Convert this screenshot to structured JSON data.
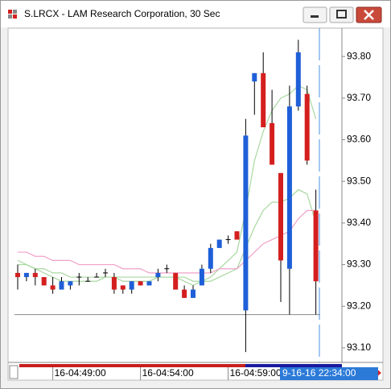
{
  "window_title": "S.LRCX - LAM Research Corporation, 30 Sec",
  "chart_data": {
    "type": "candlestick",
    "categories": [
      null,
      null,
      null,
      null,
      "16-04:49:00",
      null,
      null,
      null,
      null,
      null,
      null,
      null,
      null,
      null,
      "16-04:54:00",
      null,
      null,
      null,
      null,
      null,
      null,
      null,
      null,
      null,
      "16-04:59:00",
      null,
      null,
      null,
      null,
      null,
      null,
      null,
      null,
      null,
      null
    ],
    "cursor_label": "9-16-16 22:34:00",
    "open": [
      93.28,
      93.27,
      93.28,
      93.27,
      93.25,
      93.24,
      93.25,
      93.27,
      93.26,
      93.27,
      93.28,
      93.27,
      93.25,
      93.24,
      93.26,
      93.25,
      93.27,
      93.29,
      93.28,
      93.24,
      93.22,
      93.25,
      93.29,
      93.34,
      93.36,
      93.38,
      93.19,
      93.74,
      93.76,
      93.64,
      93.52,
      93.29,
      93.68,
      93.71,
      93.43
    ],
    "high": [
      93.3,
      93.28,
      93.29,
      93.27,
      93.27,
      93.27,
      93.26,
      93.28,
      93.27,
      93.28,
      93.29,
      93.28,
      93.25,
      93.26,
      93.26,
      93.26,
      93.29,
      93.3,
      93.28,
      93.25,
      93.25,
      93.3,
      93.35,
      93.36,
      93.37,
      93.38,
      93.65,
      93.76,
      93.81,
      93.72,
      93.52,
      93.73,
      93.84,
      93.73,
      93.48
    ],
    "low": [
      93.24,
      93.26,
      93.25,
      93.25,
      93.23,
      93.24,
      93.24,
      93.25,
      93.26,
      93.27,
      93.27,
      93.23,
      93.23,
      93.23,
      93.25,
      93.25,
      93.26,
      93.28,
      93.24,
      93.22,
      93.22,
      93.25,
      93.28,
      93.34,
      93.35,
      93.36,
      93.09,
      93.66,
      93.63,
      93.54,
      93.21,
      93.18,
      93.67,
      93.54,
      93.18
    ],
    "close": [
      93.27,
      93.28,
      93.27,
      93.25,
      93.24,
      93.26,
      93.26,
      93.27,
      93.26,
      93.27,
      93.28,
      93.24,
      93.24,
      93.26,
      93.25,
      93.26,
      93.28,
      93.29,
      93.24,
      93.22,
      93.24,
      93.29,
      93.34,
      93.36,
      93.36,
      93.36,
      93.61,
      93.76,
      93.63,
      93.54,
      93.31,
      93.68,
      93.81,
      93.55,
      93.26
    ],
    "up_color": "#1f5fd8",
    "down_color": "#d41f1f",
    "series": [
      {
        "color": "#a8d8a0",
        "values": [
          93.31,
          93.3,
          93.29,
          93.28,
          93.27,
          93.26,
          93.26,
          93.26,
          93.26,
          93.26,
          93.27,
          93.27,
          93.26,
          93.26,
          93.26,
          93.26,
          93.27,
          93.27,
          93.27,
          93.26,
          93.25,
          93.26,
          93.27,
          93.29,
          93.31,
          93.33,
          93.43,
          93.55,
          93.62,
          93.67,
          93.7,
          93.71,
          93.73,
          93.72,
          93.65
        ]
      },
      {
        "color": "#a8d8a0",
        "values": [
          93.3,
          93.3,
          93.29,
          93.29,
          93.28,
          93.28,
          93.27,
          93.27,
          93.27,
          93.27,
          93.27,
          93.27,
          93.27,
          93.27,
          93.27,
          93.27,
          93.27,
          93.27,
          93.27,
          93.27,
          93.26,
          93.26,
          93.26,
          93.27,
          93.28,
          93.29,
          93.34,
          93.39,
          93.43,
          93.45,
          93.45,
          93.46,
          93.48,
          93.47,
          93.4
        ]
      },
      {
        "color": "#f0a0c8",
        "values": [
          93.33,
          93.33,
          93.32,
          93.32,
          93.31,
          93.31,
          93.31,
          93.3,
          93.3,
          93.3,
          93.3,
          93.3,
          93.29,
          93.29,
          93.29,
          93.28,
          93.28,
          93.28,
          93.28,
          93.28,
          93.28,
          93.28,
          93.28,
          93.29,
          93.29,
          93.29,
          93.31,
          93.33,
          93.35,
          93.36,
          93.37,
          93.38,
          93.41,
          93.43,
          93.43
        ]
      }
    ],
    "reference_line": 93.18,
    "ylim": [
      93.065,
      93.868
    ],
    "yticks": [
      {
        "value": 93.1,
        "label": "93.10"
      },
      {
        "value": 93.2,
        "label": "93.20"
      },
      {
        "value": 93.3,
        "label": "93.30"
      },
      {
        "value": 93.4,
        "label": "93.40"
      },
      {
        "value": 93.5,
        "label": "93.50"
      },
      {
        "value": 93.6,
        "label": "93.60"
      },
      {
        "value": 93.7,
        "label": "93.70"
      },
      {
        "value": 93.8,
        "label": "93.80"
      }
    ]
  }
}
